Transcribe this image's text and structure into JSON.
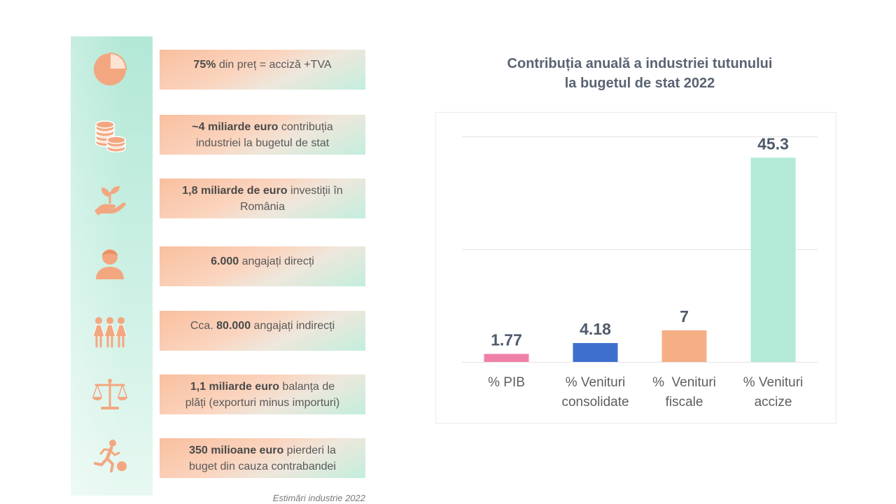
{
  "colors": {
    "icon": "#f3a780",
    "strip": "#b3e8d6",
    "fact_peach": "#f8bf9f",
    "fact_mint": "#c3eedd",
    "text": "#595959",
    "title": "#5a6372",
    "data_label": "#4f5a6b"
  },
  "sidebar": {
    "icons": [
      "pie-chart-icon",
      "coins-icon",
      "hand-plant-icon",
      "worker-icon",
      "women-group-icon",
      "scales-icon",
      "running-thief-icon"
    ]
  },
  "facts": [
    {
      "pre": "",
      "bold": "75%",
      "post": " din preț = acciză +TVA"
    },
    {
      "pre": "",
      "bold": "~4 miliarde euro",
      "post": " contribuția\nindustriei la bugetul de stat"
    },
    {
      "pre": "",
      "bold": "1,8 miliarde de euro",
      "post": " investiții în\nRomânia"
    },
    {
      "pre": "",
      "bold": "6.000",
      "post": " angajați direcți"
    },
    {
      "pre": "Cca. ",
      "bold": "80.000",
      "post": " angajați indirecți"
    },
    {
      "pre": "",
      "bold": "1,1 miliarde euro",
      "post": " balanța de\nplăți (exporturi minus importuri)"
    },
    {
      "pre": "",
      "bold": "350 milioane euro",
      "post": " pierderi la\nbuget din cauza contrabandei"
    }
  ],
  "footnote": "Estimări industrie 2022",
  "chart_data": {
    "type": "bar",
    "title": "Contribuția anuală a industriei tutunului\nla bugetul de stat 2022",
    "categories": [
      "% PIB",
      "% Venituri\nconsolidate",
      "%  Venituri\nfiscale",
      "% Venituri\naccize"
    ],
    "values": [
      1.77,
      4.18,
      7,
      45.3
    ],
    "bar_colors": [
      "#ee80a8",
      "#3d6fcf",
      "#f6ae85",
      "#b2ead7"
    ],
    "xlabel": "",
    "ylabel": "",
    "ylim": [
      0,
      50
    ],
    "y_gridlines": [
      0,
      25,
      50
    ],
    "y_tick_labels_shown": false,
    "grid": true,
    "legend": false
  }
}
